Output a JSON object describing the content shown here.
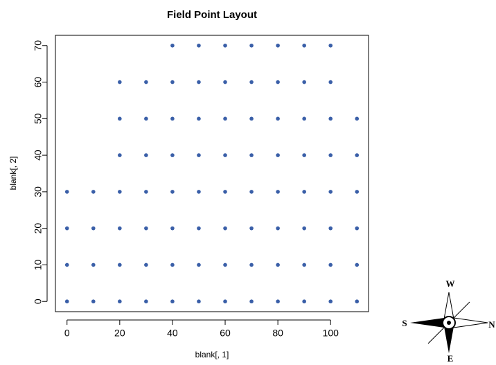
{
  "chart_data": {
    "type": "scatter",
    "title": "Field Point Layout",
    "x_label": "blank[, 1]",
    "y_label": "blank[, 2]",
    "x": [
      40,
      50,
      60,
      70,
      80,
      90,
      100,
      20,
      30,
      40,
      50,
      60,
      70,
      80,
      90,
      100,
      20,
      30,
      40,
      50,
      60,
      70,
      80,
      90,
      100,
      110,
      20,
      30,
      40,
      50,
      60,
      70,
      80,
      90,
      100,
      110,
      0,
      10,
      20,
      30,
      40,
      50,
      60,
      70,
      80,
      90,
      100,
      110,
      0,
      10,
      20,
      30,
      40,
      50,
      60,
      70,
      80,
      90,
      100,
      110,
      0,
      10,
      20,
      30,
      40,
      50,
      60,
      70,
      80,
      90,
      100,
      110,
      0,
      10,
      20,
      30,
      40,
      50,
      60,
      70,
      80,
      90,
      100,
      110
    ],
    "values": [
      70,
      70,
      70,
      70,
      70,
      70,
      70,
      60,
      60,
      60,
      60,
      60,
      60,
      60,
      60,
      60,
      50,
      50,
      50,
      50,
      50,
      50,
      50,
      50,
      50,
      50,
      40,
      40,
      40,
      40,
      40,
      40,
      40,
      40,
      40,
      40,
      30,
      30,
      30,
      30,
      30,
      30,
      30,
      30,
      30,
      30,
      30,
      30,
      20,
      20,
      20,
      20,
      20,
      20,
      20,
      20,
      20,
      20,
      20,
      20,
      10,
      10,
      10,
      10,
      10,
      10,
      10,
      10,
      10,
      10,
      10,
      10,
      0,
      0,
      0,
      0,
      0,
      0,
      0,
      0,
      0,
      0,
      0,
      0
    ],
    "color": "#3a5fa8",
    "xlim": [
      -4.4,
      114.4
    ],
    "xticks": [
      0,
      20,
      40,
      60,
      80,
      100
    ],
    "ylim": [
      -2.8,
      72.8
    ],
    "yticks": [
      0,
      10,
      20,
      30,
      40,
      50,
      60,
      70
    ],
    "compass": {
      "west": "W",
      "south": "S",
      "north": "N",
      "east": "E"
    }
  }
}
